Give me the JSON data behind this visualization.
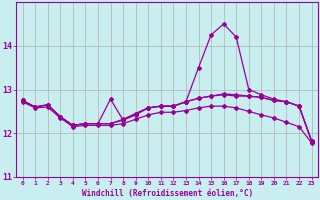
{
  "xlabel": "Windchill (Refroidissement éolien,°C)",
  "bg_color": "#c8eef0",
  "grid_color": "#b0b0b0",
  "line_color": "#990099",
  "xlim": [
    -0.5,
    23.5
  ],
  "ylim": [
    11,
    15
  ],
  "yticks": [
    11,
    12,
    13,
    14
  ],
  "xtick_labels": [
    "0",
    "1",
    "2",
    "3",
    "4",
    "5",
    "6",
    "7",
    "8",
    "9",
    "10",
    "11",
    "12",
    "13",
    "14",
    "15",
    "16",
    "17",
    "18",
    "19",
    "20",
    "21",
    "22",
    "23"
  ],
  "xtick_pos": [
    0,
    1,
    2,
    3,
    4,
    5,
    6,
    7,
    8,
    9,
    10,
    11,
    12,
    13,
    14,
    15,
    16,
    17,
    18,
    19,
    20,
    21,
    22,
    23
  ],
  "line_peak_x": [
    0,
    1,
    2,
    3,
    4,
    5,
    6,
    7,
    8,
    9,
    10,
    11,
    12,
    13,
    14,
    15,
    16,
    17,
    18,
    19,
    20,
    21,
    22,
    23
  ],
  "line_peak_y": [
    12.75,
    12.6,
    12.65,
    12.38,
    12.18,
    12.22,
    12.22,
    12.78,
    12.3,
    12.45,
    12.58,
    12.62,
    12.62,
    12.72,
    13.5,
    14.25,
    14.5,
    14.2,
    13.0,
    12.88,
    12.78,
    12.72,
    12.62,
    11.82
  ],
  "line_flat1_x": [
    0,
    1,
    2,
    3,
    4,
    5,
    6,
    7,
    8,
    9,
    10,
    11,
    12,
    13,
    14,
    15,
    16,
    17,
    18,
    19,
    20,
    21,
    22,
    23
  ],
  "line_flat1_y": [
    12.75,
    12.6,
    12.65,
    12.38,
    12.18,
    12.22,
    12.22,
    12.22,
    12.3,
    12.42,
    12.58,
    12.62,
    12.62,
    12.72,
    12.8,
    12.85,
    12.88,
    12.85,
    12.85,
    12.82,
    12.75,
    12.72,
    12.62,
    11.82
  ],
  "line_flat2_x": [
    0,
    1,
    2,
    3,
    4,
    5,
    6,
    7,
    8,
    9,
    10,
    11,
    12,
    13,
    14,
    15,
    16,
    17,
    18,
    19,
    20,
    21,
    22,
    23
  ],
  "line_flat2_y": [
    12.75,
    12.6,
    12.65,
    12.38,
    12.18,
    12.22,
    12.22,
    12.22,
    12.32,
    12.45,
    12.58,
    12.62,
    12.62,
    12.72,
    12.8,
    12.85,
    12.9,
    12.88,
    12.85,
    12.82,
    12.75,
    12.72,
    12.62,
    11.82
  ],
  "line_decline_x": [
    0,
    1,
    2,
    3,
    4,
    5,
    6,
    7,
    8,
    9,
    10,
    11,
    12,
    13,
    14,
    15,
    16,
    17,
    18,
    19,
    20,
    21,
    22,
    23
  ],
  "line_decline_y": [
    12.72,
    12.58,
    12.6,
    12.35,
    12.15,
    12.18,
    12.18,
    12.18,
    12.22,
    12.32,
    12.42,
    12.48,
    12.48,
    12.52,
    12.58,
    12.62,
    12.62,
    12.58,
    12.5,
    12.42,
    12.35,
    12.25,
    12.15,
    11.78
  ]
}
